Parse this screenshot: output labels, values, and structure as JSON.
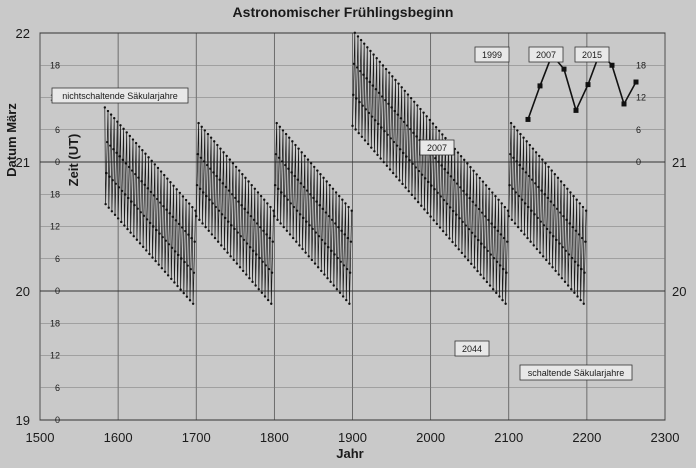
{
  "chart_data": {
    "type": "scatter",
    "title": "Astronomischer Frühlingsbeginn",
    "xlabel": "Jahr",
    "ylabel": "Datum März",
    "ylabel_inner": "Zeit (UT)",
    "xlim": [
      1500,
      2300
    ],
    "ylim": [
      19,
      22
    ],
    "x_ticks": [
      1500,
      1600,
      1700,
      1800,
      1900,
      2000,
      2100,
      2200,
      2300
    ],
    "y_ticks": [
      19,
      20,
      21,
      22
    ],
    "y_ticks_right": [
      20,
      21
    ],
    "inner_hour_ticks": [
      0,
      6,
      12,
      18
    ],
    "grid": true,
    "series": [
      {
        "name": "",
        "style": "leap-cycle sawtooth",
        "segments": [
          {
            "x_start": 1583,
            "x_end": 1699,
            "y_start": 21.05,
            "y_end": 20.25
          },
          {
            "x_start": 1700,
            "x_end": 1799,
            "y_start": 20.95,
            "y_end": 20.25
          },
          {
            "x_start": 1800,
            "x_end": 1899,
            "y_start": 20.95,
            "y_end": 20.25
          },
          {
            "x_start": 1900,
            "x_end": 2099,
            "y_start": 21.65,
            "y_end": 20.25
          },
          {
            "x_start": 2100,
            "x_end": 2199,
            "y_start": 20.95,
            "y_end": 20.25
          }
        ]
      },
      {
        "name": "",
        "style": "inset",
        "x": [
          1999,
          2003,
          2007,
          2011,
          2015,
          2019,
          2023,
          2027,
          2031,
          2035
        ],
        "y": [
          21.33,
          21.59,
          21.83,
          21.72,
          21.4,
          21.6,
          21.85,
          21.75,
          21.45,
          21.62
        ]
      }
    ],
    "annotations": [
      {
        "text": "nichtschaltende Säkularjahre"
      },
      {
        "text": "schaltende Säkularjahre"
      },
      {
        "text": "2007"
      },
      {
        "text": "2044"
      },
      {
        "text": "1999"
      },
      {
        "text": "2007"
      },
      {
        "text": "2015"
      }
    ]
  }
}
